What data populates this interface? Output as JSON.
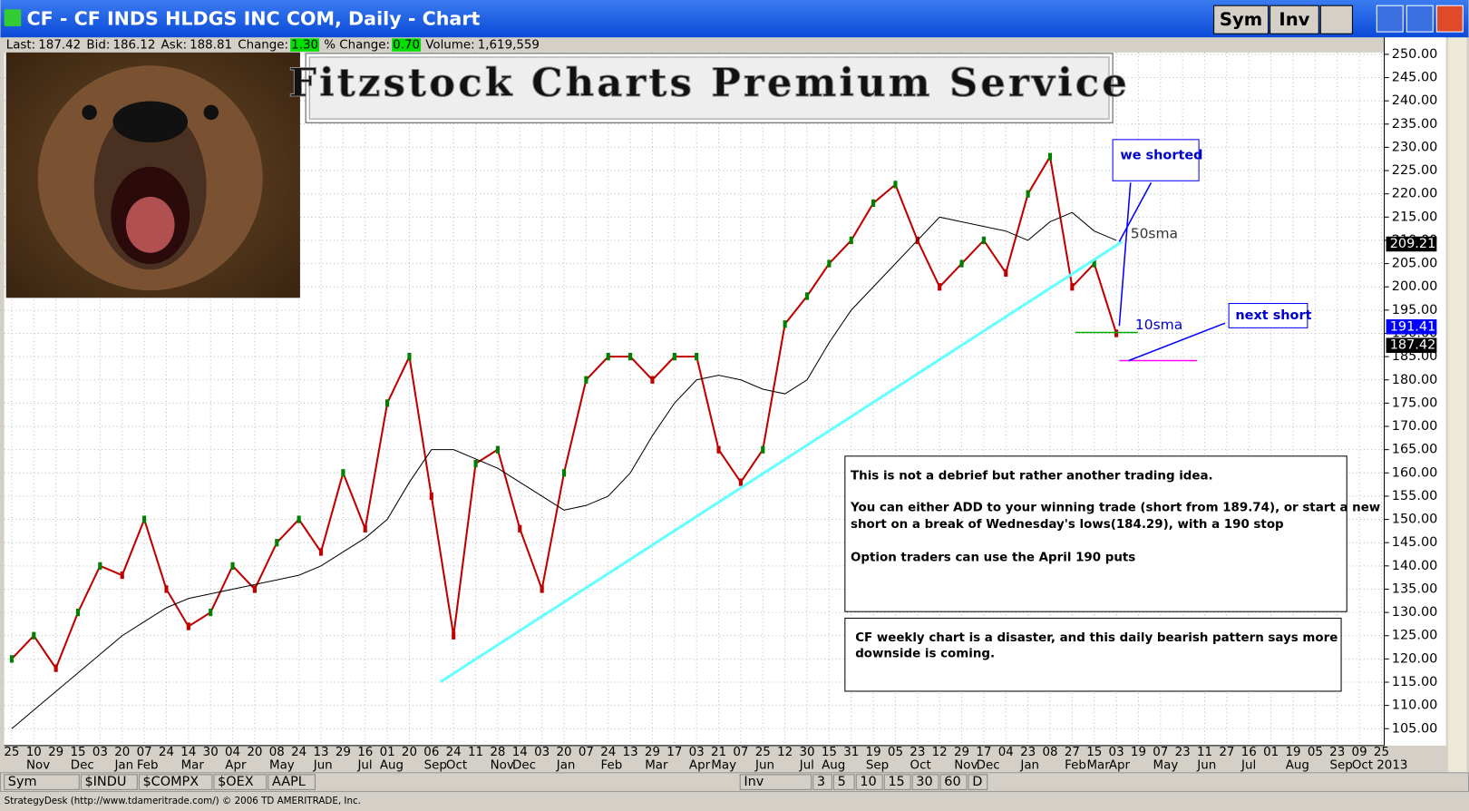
{
  "window": {
    "title": "CF - CF INDS HLDGS INC COM, Daily - Chart",
    "buttons": [
      "Sym",
      "Inv"
    ],
    "quote": [
      {
        "label": "Last:",
        "value": "187.42"
      },
      {
        "label": "Bid:",
        "value": "186.12"
      },
      {
        "label": "Ask:",
        "value": "188.81"
      },
      {
        "label": "Change:",
        "value": "1.30"
      },
      {
        "label": "% Change:",
        "value": "0.70"
      },
      {
        "label": "Volume:",
        "value": "1,619,559"
      }
    ],
    "banner": "Fitzstock Charts Premium Service",
    "notes": [
      {
        "lines": [
          "This is not a debrief but rather another trading idea.",
          "You can either ADD to your winning trade (short from 189.74), or start   a new",
          "short on a break of Wednesday's lows(184.29), with a 190 stop",
          "Option traders can use the April 190 puts"
        ]
      },
      {
        "lines": [
          "CF weekly chart is a disaster, and this daily bearish pattern says more",
          "downside is coming."
        ]
      }
    ],
    "callouts": [
      "we shorted",
      "next short",
      "50sma",
      "10sma"
    ],
    "toolbar_left": [
      "Sym",
      "$INDU",
      "$COMPX",
      "$OEX",
      "AAPL"
    ],
    "toolbar_right": [
      "Inv",
      "3",
      "5",
      "10",
      "15",
      "30",
      "60",
      "D"
    ],
    "status": "StrategyDesk (http://www.tdameritrade.com/) © 2006 TD AMERITRADE, Inc."
  },
  "chart_data": {
    "type": "line",
    "categories": [
      "25",
      "10",
      "29",
      "15",
      "03",
      "20",
      "07",
      "24",
      "14",
      "30",
      "04",
      "20",
      "08",
      "24",
      "13",
      "29",
      "16",
      "01",
      "20",
      "06",
      "24",
      "11",
      "28",
      "14",
      "03",
      "20",
      "07",
      "24",
      "13",
      "29",
      "17",
      "03",
      "21",
      "07",
      "25",
      "12",
      "30",
      "15",
      "31",
      "19",
      "05",
      "23",
      "12",
      "29",
      "17",
      "04",
      "23",
      "08",
      "27",
      "15",
      "03",
      "19",
      "07",
      "23",
      "11",
      "27",
      "16",
      "01",
      "19",
      "05",
      "23",
      "09",
      "25"
    ],
    "month_labels": [
      null,
      "Nov",
      null,
      "Dec",
      null,
      "Jan",
      "Feb",
      null,
      "Mar",
      null,
      "Apr",
      null,
      "May",
      null,
      "Jun",
      null,
      "Jul",
      "Aug",
      null,
      "Sep",
      "Oct",
      null,
      "Nov",
      "Dec",
      null,
      "Jan",
      null,
      "Feb",
      null,
      "Mar",
      null,
      "Apr",
      "May",
      null,
      "Jun",
      null,
      "Jul",
      "Aug",
      null,
      "Sep",
      null,
      "Oct",
      null,
      "Nov",
      "Dec",
      null,
      "Jan",
      null,
      "Feb",
      "Mar",
      "Apr",
      null,
      "May",
      null,
      "Jun",
      null,
      "Jul",
      null,
      "Aug",
      null,
      "Sep",
      "Oct 2013",
      null
    ],
    "series": [
      {
        "name": "CF",
        "color": "#c00000",
        "values": [
          120,
          125,
          118,
          130,
          140,
          138,
          150,
          135,
          127,
          130,
          140,
          135,
          145,
          150,
          143,
          160,
          148,
          175,
          185,
          155,
          125,
          162,
          165,
          148,
          135,
          160,
          180,
          185,
          185,
          180,
          185,
          185,
          165,
          158,
          165,
          192,
          198,
          205,
          210,
          218,
          222,
          210,
          200,
          205,
          210,
          203,
          220,
          228,
          200,
          205,
          190,
          null,
          null,
          null,
          null,
          null,
          null,
          null,
          null,
          null,
          null,
          null,
          null
        ]
      },
      {
        "name": "50sma",
        "color": "#000000",
        "values": [
          105,
          109,
          113,
          117,
          121,
          125,
          128,
          131,
          133,
          134,
          135,
          136,
          137,
          138,
          140,
          143,
          146,
          150,
          158,
          165,
          165,
          163,
          161,
          158,
          155,
          152,
          153,
          155,
          160,
          168,
          175,
          180,
          181,
          180,
          178,
          177,
          180,
          188,
          195,
          200,
          205,
          210,
          215,
          214,
          213,
          212,
          210,
          214,
          216,
          212,
          210,
          null,
          null,
          null,
          null,
          null,
          null,
          null,
          null,
          null,
          null,
          null,
          null
        ]
      }
    ],
    "ylim": [
      103,
      252
    ],
    "yticks": [
      {
        "value": 105,
        "label": "105.00"
      },
      {
        "value": 110,
        "label": "110.00"
      },
      {
        "value": 115,
        "label": "115.00"
      },
      {
        "value": 120,
        "label": "120.00"
      },
      {
        "value": 125,
        "label": "125.00"
      },
      {
        "value": 130,
        "label": "130.00"
      },
      {
        "value": 135,
        "label": "135.00"
      },
      {
        "value": 140,
        "label": "140.00"
      },
      {
        "value": 145,
        "label": "145.00"
      },
      {
        "value": 150,
        "label": "150.00"
      },
      {
        "value": 155,
        "label": "155.00"
      },
      {
        "value": 160,
        "label": "160.00"
      },
      {
        "value": 165,
        "label": "165.00"
      },
      {
        "value": 170,
        "label": "170.00"
      },
      {
        "value": 175,
        "label": "175.00"
      },
      {
        "value": 180,
        "label": "180.00"
      },
      {
        "value": 185,
        "label": "185.00"
      },
      {
        "value": 190,
        "label": "190.00"
      },
      {
        "value": 195,
        "label": "195.00"
      },
      {
        "value": 200,
        "label": "200.00"
      },
      {
        "value": 205,
        "label": "205.00"
      },
      {
        "value": 210,
        "label": "210.00"
      },
      {
        "value": 215,
        "label": "215.00"
      },
      {
        "value": 220,
        "label": "220.00"
      },
      {
        "value": 225,
        "label": "225.00"
      },
      {
        "value": 230,
        "label": "230.00"
      },
      {
        "value": 235,
        "label": "235.00"
      },
      {
        "value": 240,
        "label": "240.00"
      },
      {
        "value": 245,
        "label": "245.00"
      },
      {
        "value": 250,
        "label": "250.00"
      }
    ],
    "price_tags": [
      {
        "value": 209.21,
        "label": "209.21",
        "color": "#000000"
      },
      {
        "value": 191.41,
        "label": "191.41",
        "color": "#0000ff"
      },
      {
        "value": 187.42,
        "label": "187.42",
        "color": "#000000"
      }
    ],
    "grid": true
  }
}
